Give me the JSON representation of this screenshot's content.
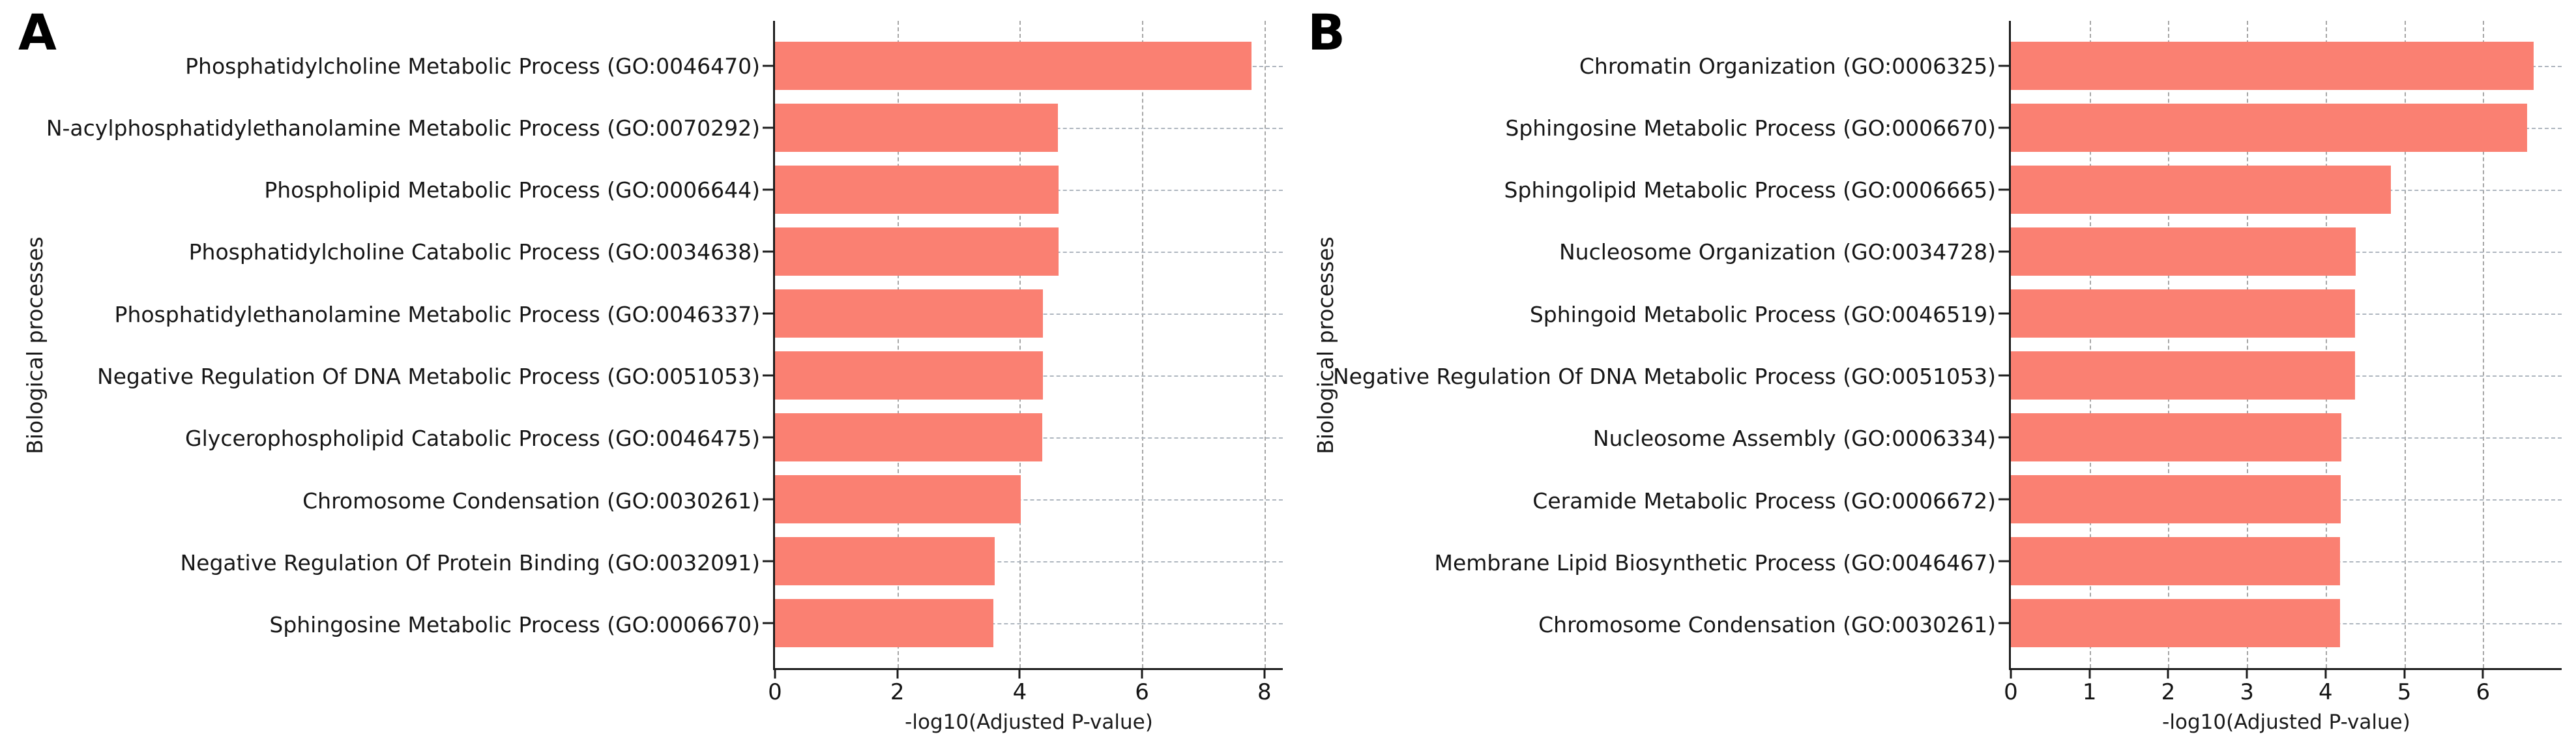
{
  "figure": {
    "background": "#ffffff",
    "bar_color": "#FA8072",
    "spine_color": "#1c1c1c",
    "vertical_grid_color": "#a6a6a6",
    "horizontal_grid_color": "#aeb6bf"
  },
  "chart_data": [
    {
      "type": "bar",
      "orientation": "horizontal",
      "title": "A",
      "xlabel": "-log10(Adjusted P-value)",
      "ylabel": "Biological processes",
      "xlim": [
        0,
        8.3
      ],
      "xticks": [
        0,
        2,
        4,
        6,
        8
      ],
      "grid": "dashed vertical and horizontal gridlines",
      "legend": "none",
      "bar_color": "#FA8072",
      "categories": [
        "Phosphatidylcholine Metabolic Process (GO:0046470)",
        "N-acylphosphatidylethanolamine Metabolic Process (GO:0070292)",
        "Phospholipid Metabolic Process (GO:0006644)",
        "Phosphatidylcholine Catabolic Process (GO:0034638)",
        "Phosphatidylethanolamine Metabolic Process (GO:0046337)",
        "Negative Regulation Of DNA Metabolic Process (GO:0051053)",
        "Glycerophospholipid Catabolic Process (GO:0046475)",
        "Chromosome Condensation (GO:0030261)",
        "Negative Regulation Of Protein Binding (GO:0032091)",
        "Sphingosine Metabolic Process (GO:0006670)"
      ],
      "values": [
        7.79,
        4.62,
        4.63,
        4.63,
        4.38,
        4.38,
        4.37,
        4.02,
        3.59,
        3.57
      ]
    },
    {
      "type": "bar",
      "orientation": "horizontal",
      "title": "B",
      "xlabel": "-log10(Adjusted P-value)",
      "ylabel": "Biological processes",
      "xlim": [
        0,
        7.0
      ],
      "xticks": [
        0,
        1,
        2,
        3,
        4,
        5,
        6
      ],
      "grid": "dashed vertical and horizontal gridlines",
      "legend": "none",
      "bar_color": "#FA8072",
      "categories": [
        "Chromatin Organization (GO:0006325)",
        "Sphingosine Metabolic Process (GO:0006670)",
        "Sphingolipid Metabolic Process (GO:0006665)",
        "Nucleosome Organization (GO:0034728)",
        "Sphingoid Metabolic Process (GO:0046519)",
        "Negative Regulation Of DNA Metabolic Process (GO:0051053)",
        "Nucleosome Assembly (GO:0006334)",
        "Ceramide Metabolic Process (GO:0006672)",
        "Membrane Lipid Biosynthetic Process (GO:0046467)",
        "Chromosome Condensation (GO:0030261)"
      ],
      "values": [
        6.64,
        6.56,
        4.83,
        4.38,
        4.37,
        4.37,
        4.2,
        4.19,
        4.18,
        4.18
      ]
    }
  ]
}
